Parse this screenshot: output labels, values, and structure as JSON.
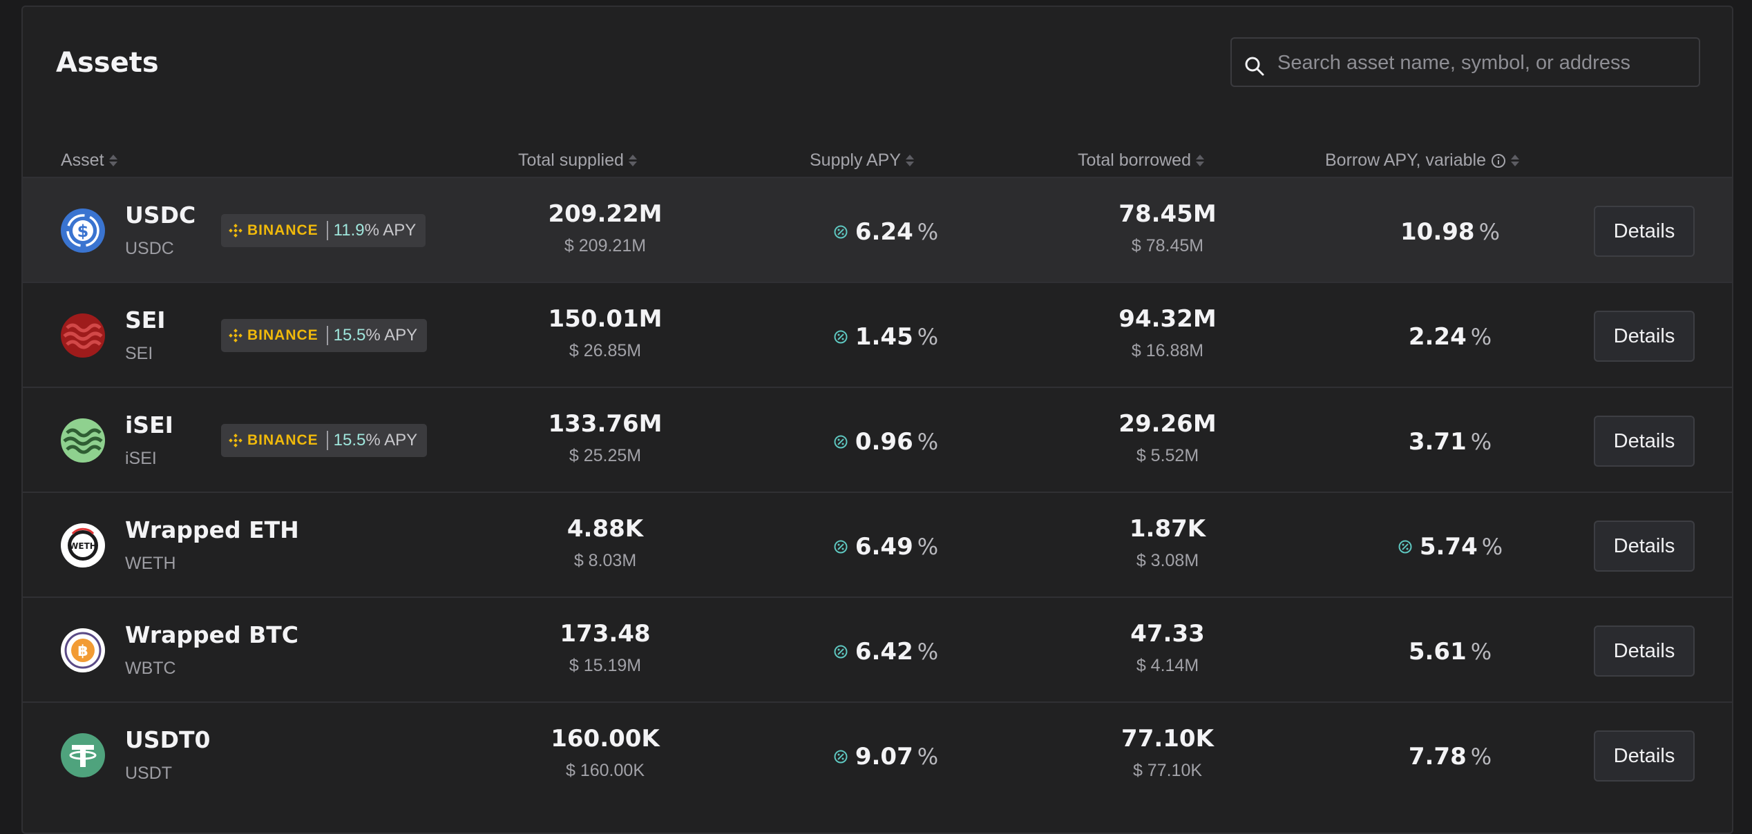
{
  "title": "Assets",
  "search": {
    "placeholder": "Search asset name, symbol, or address"
  },
  "headers": {
    "asset": "Asset",
    "total_supplied": "Total supplied",
    "supply_apy": "Supply APY",
    "total_borrowed": "Total borrowed",
    "borrow_apy": "Borrow APY, variable"
  },
  "badge_brand": "BINANCE",
  "apy_suffix": "% APY",
  "percent_sign": "%",
  "details_label": "Details",
  "rows": [
    {
      "name": "USDC",
      "symbol": "USDC",
      "logo": "usdc-icon",
      "badge": "11.9",
      "supplied": "209.22M",
      "supplied_usd": "$ 209.21M",
      "supply_apy": "6.24",
      "borrowed": "78.45M",
      "borrowed_usd": "$ 78.45M",
      "borrow_apy": "10.98",
      "borrow_icon": false
    },
    {
      "name": "SEI",
      "symbol": "SEI",
      "logo": "sei-icon",
      "badge": "15.5",
      "supplied": "150.01M",
      "supplied_usd": "$ 26.85M",
      "supply_apy": "1.45",
      "borrowed": "94.32M",
      "borrowed_usd": "$ 16.88M",
      "borrow_apy": "2.24",
      "borrow_icon": false
    },
    {
      "name": "iSEI",
      "symbol": "iSEI",
      "logo": "isei-icon",
      "badge": "15.5",
      "supplied": "133.76M",
      "supplied_usd": "$ 25.25M",
      "supply_apy": "0.96",
      "borrowed": "29.26M",
      "borrowed_usd": "$ 5.52M",
      "borrow_apy": "3.71",
      "borrow_icon": false
    },
    {
      "name": "Wrapped ETH",
      "symbol": "WETH",
      "logo": "weth-icon",
      "badge": "",
      "supplied": "4.88K",
      "supplied_usd": "$ 8.03M",
      "supply_apy": "6.49",
      "borrowed": "1.87K",
      "borrowed_usd": "$ 3.08M",
      "borrow_apy": "5.74",
      "borrow_icon": true
    },
    {
      "name": "Wrapped BTC",
      "symbol": "WBTC",
      "logo": "wbtc-icon",
      "badge": "",
      "supplied": "173.48",
      "supplied_usd": "$ 15.19M",
      "supply_apy": "6.42",
      "borrowed": "47.33",
      "borrowed_usd": "$ 4.14M",
      "borrow_apy": "5.61",
      "borrow_icon": false
    },
    {
      "name": "USDT0",
      "symbol": "USDT",
      "logo": "usdt-icon",
      "badge": "",
      "supplied": "160.00K",
      "supplied_usd": "$ 160.00K",
      "supply_apy": "9.07",
      "borrowed": "77.10K",
      "borrowed_usd": "$ 77.10K",
      "borrow_apy": "7.78",
      "borrow_icon": false
    }
  ],
  "colors": {
    "background": "#1b1b1c",
    "panel": "#212122",
    "highlight_row": "#2c2c2e",
    "binance_yellow": "#f0b90b",
    "apy_teal": "#9fe6dc",
    "incentive_teal": "#5ec7c0",
    "usdc_blue": "#3a74d0",
    "sei_red": "#9e1b1b",
    "isei_green": "#8fd18f",
    "usdt_green": "#4fa37d"
  }
}
